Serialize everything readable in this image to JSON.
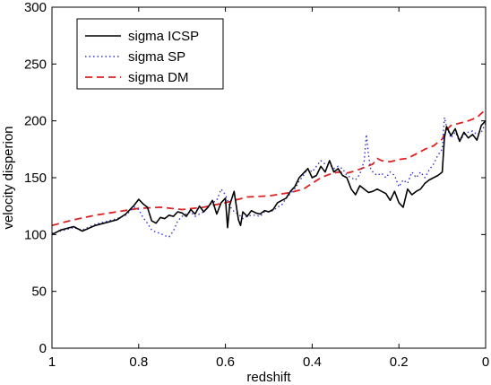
{
  "chart_data": {
    "type": "line",
    "title": "",
    "xlabel": "redshift",
    "ylabel": "velocity disperion",
    "xlim": [
      1,
      0
    ],
    "ylim": [
      0,
      300
    ],
    "x_reversed": true,
    "xticks": [
      1,
      0.8,
      0.6,
      0.4,
      0.2,
      0
    ],
    "xtick_labels": [
      "1",
      "0.8",
      "0.6",
      "0.4",
      "0.2",
      "0"
    ],
    "yticks": [
      0,
      50,
      100,
      150,
      200,
      250,
      300
    ],
    "ytick_labels": [
      "0",
      "50",
      "100",
      "150",
      "200",
      "250",
      "300"
    ],
    "grid": false,
    "legend_position": "top-left",
    "series": [
      {
        "name": "sigma ICSP",
        "color": "#000000",
        "style": "solid",
        "x": [
          1.0,
          0.98,
          0.95,
          0.93,
          0.9,
          0.88,
          0.85,
          0.83,
          0.81,
          0.8,
          0.79,
          0.78,
          0.77,
          0.76,
          0.75,
          0.74,
          0.73,
          0.72,
          0.71,
          0.7,
          0.69,
          0.68,
          0.67,
          0.66,
          0.65,
          0.64,
          0.63,
          0.62,
          0.61,
          0.6,
          0.595,
          0.59,
          0.58,
          0.57,
          0.565,
          0.56,
          0.55,
          0.54,
          0.53,
          0.52,
          0.51,
          0.5,
          0.49,
          0.48,
          0.47,
          0.46,
          0.45,
          0.44,
          0.43,
          0.42,
          0.41,
          0.4,
          0.39,
          0.38,
          0.37,
          0.36,
          0.35,
          0.34,
          0.33,
          0.32,
          0.31,
          0.3,
          0.29,
          0.28,
          0.27,
          0.26,
          0.25,
          0.24,
          0.23,
          0.22,
          0.21,
          0.2,
          0.19,
          0.18,
          0.17,
          0.16,
          0.15,
          0.14,
          0.13,
          0.12,
          0.11,
          0.1,
          0.095,
          0.09,
          0.08,
          0.07,
          0.06,
          0.05,
          0.04,
          0.03,
          0.02,
          0.01,
          0.0
        ],
        "y": [
          100,
          104,
          107,
          103,
          108,
          110,
          113,
          118,
          126,
          131,
          127,
          124,
          112,
          110,
          115,
          114,
          117,
          116,
          120,
          119,
          116,
          122,
          118,
          125,
          120,
          124,
          130,
          118,
          128,
          132,
          106,
          126,
          138,
          113,
          108,
          120,
          116,
          121,
          119,
          118,
          121,
          120,
          122,
          128,
          130,
          132,
          138,
          142,
          150,
          154,
          158,
          150,
          152,
          160,
          155,
          165,
          155,
          158,
          152,
          150,
          140,
          135,
          143,
          140,
          137,
          138,
          140,
          138,
          136,
          130,
          138,
          128,
          124,
          140,
          135,
          138,
          140,
          145,
          148,
          150,
          152,
          155,
          185,
          195,
          187,
          193,
          182,
          190,
          185,
          188,
          183,
          196,
          200
        ]
      },
      {
        "name": "sigma SP",
        "color": "#3333cc",
        "style": "dotted",
        "x": [
          1.0,
          0.98,
          0.95,
          0.93,
          0.9,
          0.88,
          0.85,
          0.83,
          0.81,
          0.8,
          0.79,
          0.78,
          0.77,
          0.76,
          0.75,
          0.74,
          0.73,
          0.72,
          0.71,
          0.7,
          0.69,
          0.68,
          0.67,
          0.66,
          0.65,
          0.64,
          0.63,
          0.62,
          0.61,
          0.6,
          0.59,
          0.58,
          0.57,
          0.56,
          0.55,
          0.54,
          0.53,
          0.52,
          0.51,
          0.5,
          0.49,
          0.48,
          0.47,
          0.46,
          0.45,
          0.44,
          0.43,
          0.42,
          0.41,
          0.4,
          0.39,
          0.38,
          0.37,
          0.36,
          0.35,
          0.34,
          0.33,
          0.32,
          0.31,
          0.3,
          0.29,
          0.28,
          0.275,
          0.27,
          0.265,
          0.26,
          0.25,
          0.24,
          0.23,
          0.22,
          0.21,
          0.2,
          0.19,
          0.18,
          0.17,
          0.16,
          0.15,
          0.14,
          0.13,
          0.12,
          0.11,
          0.1,
          0.095,
          0.09,
          0.08,
          0.07,
          0.06,
          0.05,
          0.04,
          0.03,
          0.02,
          0.01,
          0.0
        ],
        "y": [
          101,
          103,
          106,
          104,
          109,
          111,
          114,
          117,
          124,
          122,
          115,
          110,
          104,
          102,
          101,
          99,
          98,
          103,
          112,
          116,
          118,
          120,
          116,
          118,
          120,
          125,
          128,
          130,
          140,
          135,
          125,
          120,
          118,
          114,
          116,
          117,
          117,
          116,
          120,
          120,
          121,
          124,
          126,
          132,
          136,
          140,
          147,
          152,
          158,
          155,
          160,
          165,
          162,
          162,
          158,
          160,
          158,
          152,
          150,
          148,
          153,
          165,
          188,
          170,
          158,
          155,
          152,
          154,
          150,
          155,
          152,
          142,
          148,
          145,
          155,
          150,
          155,
          150,
          157,
          162,
          170,
          175,
          203,
          195,
          185,
          190,
          182,
          188,
          190,
          191,
          188,
          190,
          198
        ]
      },
      {
        "name": "sigma DM",
        "color": "#dd2222",
        "style": "dashed",
        "x": [
          1.0,
          0.95,
          0.9,
          0.85,
          0.8,
          0.75,
          0.7,
          0.65,
          0.6,
          0.55,
          0.5,
          0.45,
          0.42,
          0.4,
          0.38,
          0.36,
          0.34,
          0.32,
          0.3,
          0.28,
          0.26,
          0.25,
          0.24,
          0.22,
          0.2,
          0.18,
          0.16,
          0.14,
          0.12,
          0.1,
          0.09,
          0.08,
          0.06,
          0.04,
          0.02,
          0.0
        ],
        "y": [
          108,
          113,
          117,
          120,
          123,
          124,
          122,
          124,
          128,
          133,
          134,
          137,
          140,
          145,
          150,
          153,
          155,
          154,
          156,
          159,
          162,
          167,
          165,
          164,
          166,
          167,
          171,
          175,
          178,
          184,
          192,
          196,
          198,
          200,
          203,
          210
        ]
      }
    ]
  }
}
